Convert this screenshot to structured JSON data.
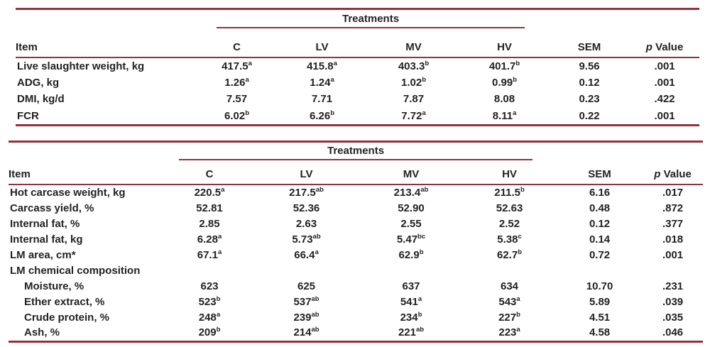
{
  "styles": {
    "rule_color": "#93323f",
    "text_color": "#222222",
    "background": "#ffffff"
  },
  "tables": [
    {
      "id": "growth-performance",
      "spanner_label": "Treatments",
      "columns": {
        "item": "Item",
        "treatments": [
          "C",
          "LV",
          "MV",
          "HV"
        ],
        "sem": "SEM",
        "p_italic": "p",
        "p_rest": " Value"
      },
      "rows": [
        {
          "label": "Live slaughter weight, kg",
          "indent": false,
          "values": [
            "417.5^a",
            "415.8^a",
            "403.3^b",
            "401.7^b",
            "9.56",
            ".001"
          ]
        },
        {
          "label": "ADG, kg",
          "indent": false,
          "values": [
            "1.26^a",
            "1.24^a",
            "1.02^b",
            "0.99^b",
            "0.12",
            ".001"
          ]
        },
        {
          "label": "DMI, kg/d",
          "indent": false,
          "values": [
            "7.57",
            "7.71",
            "7.87",
            "8.08",
            "0.23",
            ".422"
          ]
        },
        {
          "label": "FCR",
          "indent": false,
          "values": [
            "6.02^b",
            "6.26^b",
            "7.72^a",
            "8.11^a",
            "0.22",
            ".001"
          ]
        }
      ]
    },
    {
      "id": "carcass-traits",
      "spanner_label": "Treatments",
      "columns": {
        "item": "Item",
        "treatments": [
          "C",
          "LV",
          "MV",
          "HV"
        ],
        "sem": "SEM",
        "p_italic": "p",
        "p_rest": " Value"
      },
      "rows": [
        {
          "label": "Hot carcase weight, kg",
          "indent": false,
          "values": [
            "220.5^a",
            "217.5^ab",
            "213.4^ab",
            "211.5^b",
            "6.16",
            ".017"
          ]
        },
        {
          "label": "Carcass yield, %",
          "indent": false,
          "values": [
            "52.81",
            "52.36",
            "52.90",
            "52.63",
            "0.48",
            ".872"
          ]
        },
        {
          "label": "Internal fat, %",
          "indent": false,
          "values": [
            "2.85",
            "2.63",
            "2.55",
            "2.52",
            "0.12",
            ".377"
          ]
        },
        {
          "label": "Internal fat, kg",
          "indent": false,
          "values": [
            "6.28^a",
            "5.73^ab",
            "5.47^bc",
            "5.38^c",
            "0.14",
            ".018"
          ]
        },
        {
          "label": "LM area, cm*",
          "indent": false,
          "values": [
            "67.1^a",
            "66.4^a",
            "62.9^b",
            "62.7^b",
            "0.72",
            ".001"
          ]
        },
        {
          "label": "LM chemical composition",
          "indent": false,
          "values": []
        },
        {
          "label": "Moisture, %",
          "indent": true,
          "values": [
            "623",
            "625",
            "637",
            "634",
            "10.70",
            ".231"
          ]
        },
        {
          "label": "Ether extract, %",
          "indent": true,
          "values": [
            "523^b",
            "537^ab",
            "541^a",
            "543^a",
            "5.89",
            ".039"
          ]
        },
        {
          "label": "Crude protein, %",
          "indent": true,
          "values": [
            "248^a",
            "239^ab",
            "234^b",
            "227^b",
            "4.51",
            ".035"
          ]
        },
        {
          "label": "Ash, %",
          "indent": true,
          "values": [
            "209^b",
            "214^ab",
            "221^ab",
            "223^a",
            "4.58",
            ".046"
          ]
        }
      ]
    }
  ]
}
